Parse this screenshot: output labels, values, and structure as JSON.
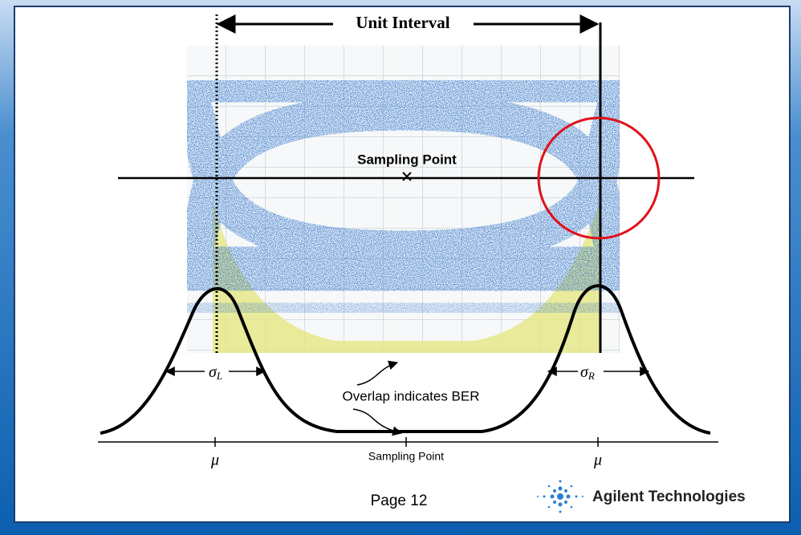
{
  "diagram": {
    "unit_interval": "Unit Interval",
    "sampling_point_eye": "Sampling Point",
    "sigma_left": {
      "symbol": "σ",
      "sub": "L"
    },
    "sigma_right": {
      "symbol": "σ",
      "sub": "R"
    },
    "overlap_note": "Overlap indicates BER",
    "axis_labels": [
      "μ",
      "Sampling Point",
      "μ"
    ]
  },
  "footer": {
    "page": "Page 12",
    "company": "Agilent Technologies"
  }
}
